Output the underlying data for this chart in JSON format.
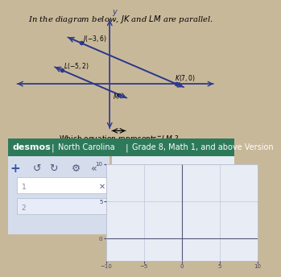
{
  "title_text": "In the diagram below, $JK$ and $LM$ are parallel.",
  "question_text": "Which equation represents $\\overleftrightarrow{LM}$ ?",
  "points": {
    "J": [
      -3,
      6
    ],
    "K": [
      7,
      0
    ],
    "L": [
      -5,
      2
    ],
    "M_label": [
      0.5,
      1.2
    ]
  },
  "jk_color": "#2d3a8c",
  "lm_color": "#2d3a8c",
  "transversal_color": "#2d3a8c",
  "bg_color": "#ffffff",
  "desmos_header_color": "#2d7a5a",
  "desmos_header_text": "desmos  |  North Carolina  |  Grade 8, Math 1, and above Version",
  "graph_bg": "#e8edf5",
  "graph_line_color": "#b0b8cc",
  "axis_color": "#555577",
  "toolbar_bg": "#dce3f0"
}
